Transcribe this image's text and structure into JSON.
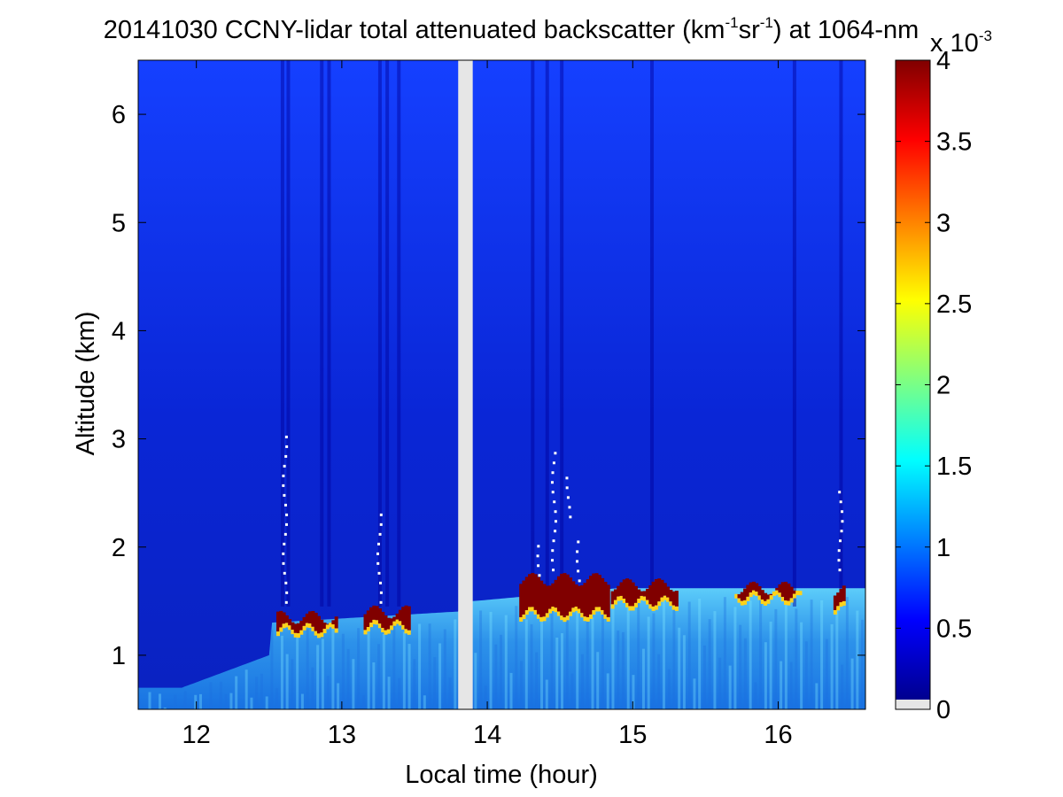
{
  "chart_data": {
    "type": "heatmap",
    "title": {
      "prefix": "20141030 CCNY-lidar total attenuated backscatter (km",
      "sup1": "-1",
      "mid": "sr",
      "sup2": "-1",
      "suffix": ") at 1064-nm"
    },
    "xlabel": "Local time (hour)",
    "ylabel": "Altitude (km)",
    "xlim": [
      11.6,
      16.6
    ],
    "ylim": [
      0.5,
      6.5
    ],
    "x_ticks": [
      12,
      13,
      14,
      15,
      16
    ],
    "x_tick_labels": [
      "12",
      "13",
      "14",
      "15",
      "16"
    ],
    "y_ticks": [
      1,
      2,
      3,
      4,
      5,
      6
    ],
    "y_tick_labels": [
      "1",
      "2",
      "3",
      "4",
      "5",
      "6"
    ],
    "data_gap": [
      13.8,
      13.9
    ],
    "colormap": "jet",
    "colorbar": {
      "range": [
        0,
        4
      ],
      "ticks": [
        0,
        0.5,
        1,
        1.5,
        2,
        2.5,
        3,
        3.5,
        4
      ],
      "tick_labels": [
        "0",
        "0.5",
        "1",
        "1.5",
        "2",
        "2.5",
        "3",
        "3.5",
        "4"
      ],
      "multiplier_base": "x 10",
      "multiplier_exp": "-3"
    },
    "cloud_base_segments": [
      {
        "t_start": 12.55,
        "t_end": 12.95,
        "base_km": 1.25,
        "top_km": 1.35
      },
      {
        "t_start": 13.15,
        "t_end": 13.45,
        "base_km": 1.28,
        "top_km": 1.4
      },
      {
        "t_start": 14.22,
        "t_end": 14.82,
        "base_km": 1.4,
        "top_km": 1.7
      },
      {
        "t_start": 14.85,
        "t_end": 15.3,
        "base_km": 1.5,
        "top_km": 1.65
      },
      {
        "t_start": 15.7,
        "t_end": 16.15,
        "base_km": 1.55,
        "top_km": 1.62
      },
      {
        "t_start": 16.38,
        "t_end": 16.45,
        "base_km": 1.45,
        "top_km": 1.6
      }
    ]
  },
  "colors": {
    "background": "#ffffff",
    "gap": "#e6e6e6",
    "nodata": "#e6e6e6",
    "jet_stops": [
      "#00008f",
      "#0000ff",
      "#0080ff",
      "#00ffff",
      "#80ff80",
      "#ffff00",
      "#ff8000",
      "#ff0000",
      "#800000"
    ]
  }
}
